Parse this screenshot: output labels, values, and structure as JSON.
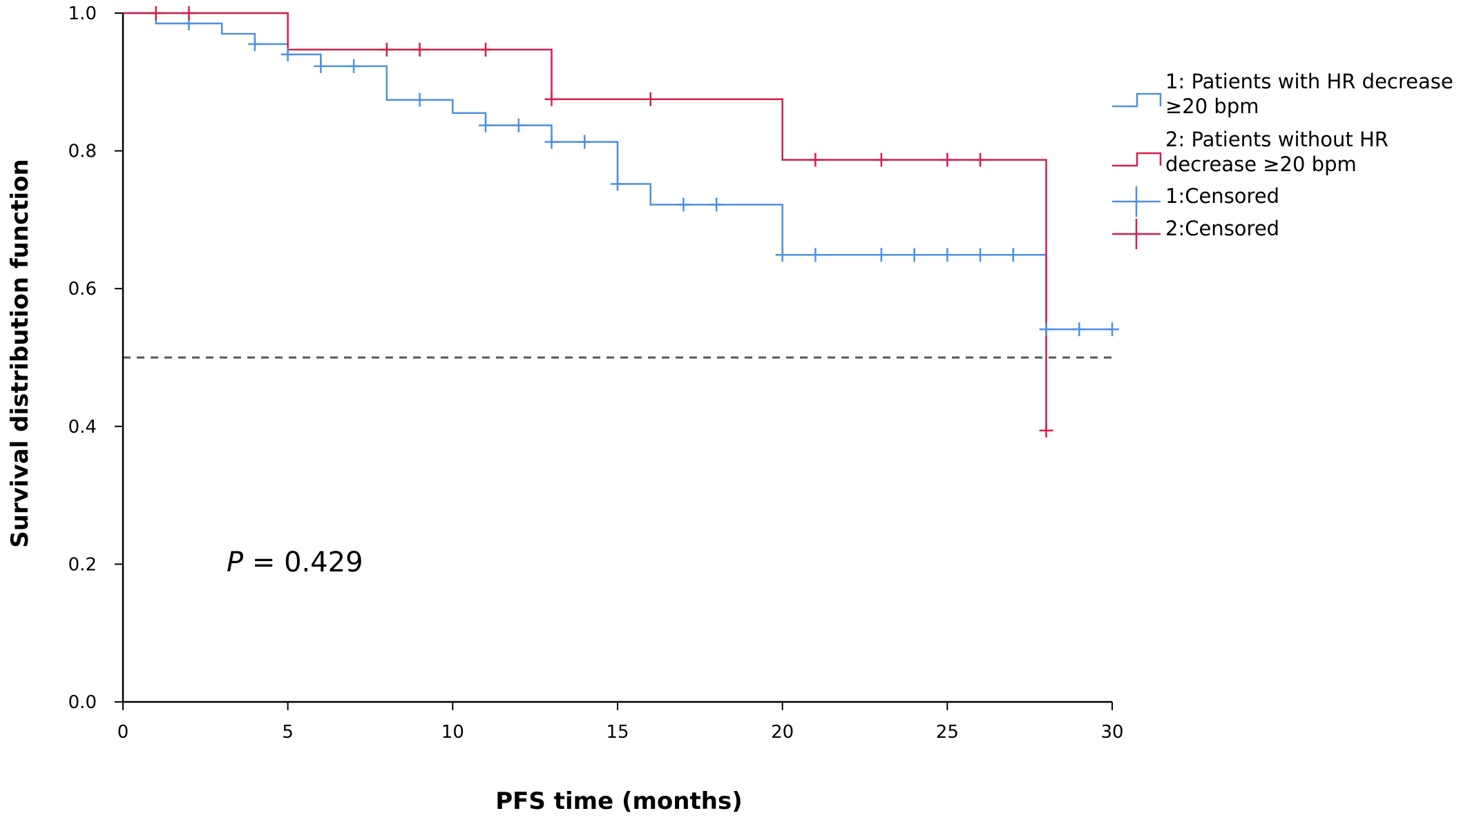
{
  "chart_data": {
    "type": "line",
    "subtype": "kaplan-meier step",
    "title": "",
    "xlabel": "PFS time (months)",
    "ylabel": "Survival distribution function",
    "xlim": [
      0,
      30
    ],
    "ylim": [
      0,
      1.0
    ],
    "xticks": [
      "0",
      "5",
      "10",
      "15",
      "20",
      "25",
      "30"
    ],
    "yticks": [
      "0.0",
      "0.2",
      "0.4",
      "0.6",
      "0.8",
      "1.0"
    ],
    "grid": false,
    "legend_placement": "right",
    "reference_line": {
      "y": 0.5,
      "style": "dashed",
      "color": "#555555"
    },
    "annotation": {
      "prefix": "P",
      "text": " = 0.429"
    },
    "series": [
      {
        "name": "1: Patients with HR decrease ≥20 bpm",
        "color": "#4a90e2",
        "steps": [
          [
            0,
            1.0
          ],
          [
            1,
            0.985
          ],
          [
            3,
            0.97
          ],
          [
            4,
            0.955
          ],
          [
            5,
            0.94
          ],
          [
            6,
            0.923
          ],
          [
            8,
            0.874
          ],
          [
            10,
            0.855
          ],
          [
            11,
            0.837
          ],
          [
            13,
            0.813
          ],
          [
            15,
            0.752
          ],
          [
            16,
            0.722
          ],
          [
            20,
            0.649
          ],
          [
            28,
            0.541
          ],
          [
            30,
            0.541
          ]
        ],
        "censored": [
          [
            2,
            0.985
          ],
          [
            4,
            0.955
          ],
          [
            5,
            0.94
          ],
          [
            6,
            0.923
          ],
          [
            7,
            0.923
          ],
          [
            9,
            0.874
          ],
          [
            11,
            0.837
          ],
          [
            12,
            0.837
          ],
          [
            13,
            0.813
          ],
          [
            14,
            0.813
          ],
          [
            15,
            0.752
          ],
          [
            17,
            0.722
          ],
          [
            18,
            0.722
          ],
          [
            20,
            0.649
          ],
          [
            21,
            0.649
          ],
          [
            23,
            0.649
          ],
          [
            24,
            0.649
          ],
          [
            25,
            0.649
          ],
          [
            26,
            0.649
          ],
          [
            27,
            0.649
          ],
          [
            28,
            0.541
          ],
          [
            29,
            0.541
          ],
          [
            30,
            0.541
          ]
        ]
      },
      {
        "name": "2: Patients without HR decrease ≥20 bpm",
        "color": "#d81b48",
        "steps": [
          [
            0,
            1.0
          ],
          [
            5,
            0.947
          ],
          [
            13,
            0.875
          ],
          [
            20,
            0.787
          ],
          [
            28,
            0.394
          ]
        ],
        "censored": [
          [
            1,
            1.0
          ],
          [
            2,
            1.0
          ],
          [
            8,
            0.947
          ],
          [
            9,
            0.947
          ],
          [
            11,
            0.947
          ],
          [
            13,
            0.875
          ],
          [
            16,
            0.875
          ],
          [
            21,
            0.787
          ],
          [
            23,
            0.787
          ],
          [
            25,
            0.787
          ],
          [
            26,
            0.787
          ],
          [
            28,
            0.394
          ]
        ]
      }
    ],
    "legend": [
      {
        "lines": [
          "1: Patients with HR decrease",
          "≥20 bpm"
        ],
        "kind": "step",
        "color": "#4a90e2"
      },
      {
        "lines": [
          "2: Patients without HR",
          "decrease ≥20 bpm"
        ],
        "kind": "step",
        "color": "#d81b48"
      },
      {
        "lines": [
          "1:Censored"
        ],
        "kind": "censor",
        "color": "#4a90e2"
      },
      {
        "lines": [
          "2:Censored"
        ],
        "kind": "censor",
        "color": "#d81b48"
      }
    ]
  }
}
